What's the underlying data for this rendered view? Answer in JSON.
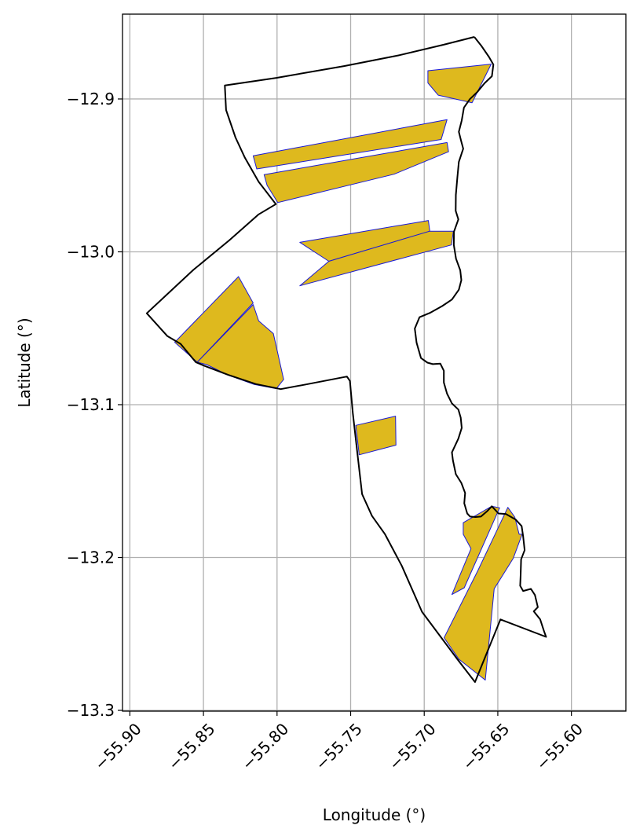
{
  "chart_data": {
    "type": "map",
    "title": "",
    "xlabel": "Longitude (°)",
    "ylabel": "Latitude (°)",
    "xlim": [
      -55.905,
      -55.563
    ],
    "ylim": [
      -13.3005,
      -12.8445
    ],
    "xticks": [
      -55.9,
      -55.85,
      -55.8,
      -55.75,
      -55.7,
      -55.65,
      -55.6
    ],
    "xtick_labels": [
      "−55.90",
      "−55.85",
      "−55.80",
      "−55.75",
      "−55.70",
      "−55.65",
      "−55.60"
    ],
    "yticks": [
      -12.9,
      -13.0,
      -13.1,
      -13.2,
      -13.3
    ],
    "ytick_labels": [
      "−12.9",
      "−13.0",
      "−13.1",
      "−13.2",
      "−13.3"
    ],
    "grid": true,
    "colors": {
      "boundary": "#000000",
      "parcel_fill": "#deb91e",
      "parcel_edge": "#1a1ad6"
    },
    "boundary": [
      [
        -55.666,
        -12.8594
      ],
      [
        -55.661,
        -12.8655
      ],
      [
        -55.656,
        -12.8725
      ],
      [
        -55.653,
        -12.8775
      ],
      [
        -55.654,
        -12.8851
      ],
      [
        -55.659,
        -12.8897
      ],
      [
        -55.664,
        -12.8955
      ],
      [
        -55.669,
        -12.9001
      ],
      [
        -55.673,
        -12.9056
      ],
      [
        -55.6745,
        -12.914
      ],
      [
        -55.6765,
        -12.9215
      ],
      [
        -55.675,
        -12.9272
      ],
      [
        -55.6735,
        -12.9325
      ],
      [
        -55.6765,
        -12.9412
      ],
      [
        -55.6775,
        -12.9515
      ],
      [
        -55.6785,
        -12.9628
      ],
      [
        -55.6786,
        -12.9732
      ],
      [
        -55.6768,
        -12.9788
      ],
      [
        -55.6798,
        -12.9868
      ],
      [
        -55.6799,
        -12.9955
      ],
      [
        -55.6784,
        -13.0045
      ],
      [
        -55.6755,
        -13.0121
      ],
      [
        -55.6748,
        -13.0185
      ],
      [
        -55.6765,
        -13.0248
      ],
      [
        -55.6812,
        -13.0312
      ],
      [
        -55.6878,
        -13.0355
      ],
      [
        -55.6958,
        -13.0398
      ],
      [
        -55.7032,
        -13.0428
      ],
      [
        -55.7064,
        -13.0502
      ],
      [
        -55.7052,
        -13.0595
      ],
      [
        -55.7022,
        -13.0695
      ],
      [
        -55.6978,
        -13.0725
      ],
      [
        -55.6942,
        -13.0735
      ],
      [
        -55.6891,
        -13.0731
      ],
      [
        -55.6867,
        -13.0778
      ],
      [
        -55.6867,
        -13.0855
      ],
      [
        -55.6845,
        -13.0928
      ],
      [
        -55.6812,
        -13.0992
      ],
      [
        -55.6768,
        -13.1032
      ],
      [
        -55.6752,
        -13.1085
      ],
      [
        -55.6745,
        -13.1152
      ],
      [
        -55.6768,
        -13.1222
      ],
      [
        -55.6812,
        -13.1312
      ],
      [
        -55.6805,
        -13.1365
      ],
      [
        -55.6785,
        -13.1455
      ],
      [
        -55.6748,
        -13.1512
      ],
      [
        -55.6722,
        -13.1578
      ],
      [
        -55.6728,
        -13.1645
      ],
      [
        -55.6708,
        -13.1712
      ],
      [
        -55.6688,
        -13.1732
      ],
      [
        -55.6652,
        -13.1735
      ],
      [
        -55.6615,
        -13.1732
      ],
      [
        -55.6574,
        -13.1698
      ],
      [
        -55.6541,
        -13.1665
      ],
      [
        -55.6495,
        -13.1712
      ],
      [
        -55.6445,
        -13.1715
      ],
      [
        -55.6378,
        -13.1752
      ],
      [
        -55.6338,
        -13.1795
      ],
      [
        -55.6328,
        -13.1862
      ],
      [
        -55.6318,
        -13.1952
      ],
      [
        -55.6342,
        -13.2012
      ],
      [
        -55.6345,
        -13.2115
      ],
      [
        -55.6348,
        -13.2185
      ],
      [
        -55.6328,
        -13.2219
      ],
      [
        -55.6275,
        -13.2205
      ],
      [
        -55.6248,
        -13.2245
      ],
      [
        -55.6228,
        -13.2325
      ],
      [
        -55.6256,
        -13.2352
      ],
      [
        -55.6212,
        -13.2405
      ],
      [
        -55.6185,
        -13.2485
      ],
      [
        -55.6172,
        -13.2519
      ],
      [
        -55.6482,
        -13.2405
      ],
      [
        -55.6655,
        -13.2815
      ],
      [
        -55.6775,
        -13.2665
      ],
      [
        -55.7015,
        -13.2355
      ],
      [
        -55.7152,
        -13.2055
      ],
      [
        -55.7268,
        -13.1845
      ],
      [
        -55.7355,
        -13.1728
      ],
      [
        -55.7422,
        -13.1585
      ],
      [
        -55.7452,
        -13.1335
      ],
      [
        -55.7485,
        -13.1055
      ],
      [
        -55.7505,
        -13.0845
      ],
      [
        -55.7525,
        -13.0816
      ],
      [
        -55.7805,
        -13.0868
      ],
      [
        -55.7975,
        -13.0898
      ],
      [
        -55.8145,
        -13.0865
      ],
      [
        -55.8332,
        -13.0805
      ],
      [
        -55.8495,
        -13.0745
      ],
      [
        -55.8552,
        -13.0722
      ],
      [
        -55.8655,
        -13.0602
      ],
      [
        -55.8745,
        -13.0552
      ],
      [
        -55.8885,
        -13.0402
      ],
      [
        -55.8568,
        -13.0118
      ],
      [
        -55.8325,
        -12.9925
      ],
      [
        -55.8125,
        -12.9755
      ],
      [
        -55.8008,
        -12.9688
      ],
      [
        -55.8125,
        -12.9542
      ],
      [
        -55.8218,
        -12.9385
      ],
      [
        -55.8282,
        -12.9252
      ],
      [
        -55.8346,
        -12.9072
      ],
      [
        -55.8355,
        -12.8912
      ],
      [
        -55.8005,
        -12.8862
      ],
      [
        -55.7545,
        -12.8785
      ],
      [
        -55.7175,
        -12.8715
      ],
      [
        -55.6868,
        -12.8645
      ],
      [
        -55.666,
        -12.8594
      ]
    ],
    "parcels": [
      [
        [
          -55.6975,
          -12.8815
        ],
        [
          -55.6545,
          -12.8772
        ],
        [
          -55.6675,
          -12.9025
        ],
        [
          -55.6905,
          -12.8975
        ],
        [
          -55.6975,
          -12.8895
        ]
      ],
      [
        [
          -55.8162,
          -12.9372
        ],
        [
          -55.6845,
          -12.9135
        ],
        [
          -55.6885,
          -12.9265
        ],
        [
          -55.8138,
          -12.9458
        ]
      ],
      [
        [
          -55.8088,
          -12.9495
        ],
        [
          -55.6845,
          -12.9285
        ],
        [
          -55.6835,
          -12.9345
        ],
        [
          -55.7205,
          -12.9492
        ],
        [
          -55.7995,
          -12.9678
        ],
        [
          -55.8068,
          -12.9565
        ]
      ],
      [
        [
          -55.7845,
          -12.9938
        ],
        [
          -55.6972,
          -12.9795
        ],
        [
          -55.6962,
          -12.9865
        ],
        [
          -55.7648,
          -13.0062
        ]
      ],
      [
        [
          -55.7845,
          -13.0222
        ],
        [
          -55.7648,
          -13.0062
        ],
        [
          -55.6962,
          -12.9865
        ],
        [
          -55.6802,
          -12.9865
        ],
        [
          -55.6815,
          -12.9955
        ]
      ],
      [
        [
          -55.8695,
          -13.0592
        ],
        [
          -55.8262,
          -13.0162
        ],
        [
          -55.8162,
          -13.0335
        ],
        [
          -55.8542,
          -13.0722
        ]
      ],
      [
        [
          -55.8542,
          -13.0722
        ],
        [
          -55.8162,
          -13.0345
        ],
        [
          -55.8125,
          -13.0452
        ],
        [
          -55.8025,
          -13.0535
        ],
        [
          -55.7955,
          -13.0835
        ],
        [
          -55.8005,
          -13.0895
        ],
        [
          -55.8155,
          -13.0868
        ],
        [
          -55.8335,
          -13.0805
        ],
        [
          -55.8478,
          -13.0738
        ]
      ],
      [
        [
          -55.7465,
          -13.1135
        ],
        [
          -55.7195,
          -13.1075
        ],
        [
          -55.7192,
          -13.1265
        ],
        [
          -55.7442,
          -13.1328
        ]
      ],
      [
        [
          -55.6812,
          -13.2242
        ],
        [
          -55.6728,
          -13.2198
        ],
        [
          -55.6488,
          -13.1675
        ],
        [
          -55.6542,
          -13.1665
        ],
        [
          -55.6735,
          -13.1772
        ],
        [
          -55.6735,
          -13.1848
        ],
        [
          -55.6682,
          -13.1942
        ]
      ],
      [
        [
          -55.6865,
          -13.2525
        ],
        [
          -55.6635,
          -13.2085
        ],
        [
          -55.6432,
          -13.1672
        ],
        [
          -55.6385,
          -13.1735
        ],
        [
          -55.6355,
          -13.1848
        ],
        [
          -55.6335,
          -13.1848
        ],
        [
          -55.6395,
          -13.2005
        ],
        [
          -55.6525,
          -13.2205
        ],
        [
          -55.6585,
          -13.2802
        ],
        [
          -55.6765,
          -13.2665
        ]
      ]
    ]
  }
}
